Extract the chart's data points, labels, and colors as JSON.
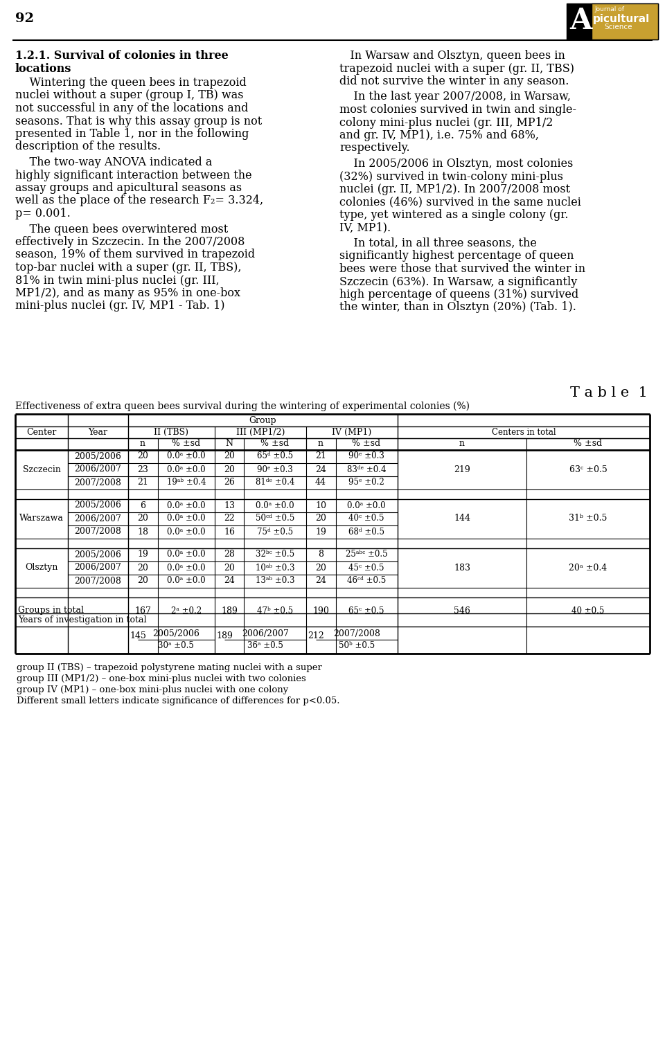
{
  "page_number": "92",
  "left_heading": "1.2.1. Survival of colonies in three\nlocations",
  "left_para1": "    Wintering the queen bees in trapezoid\nnuclei without a super (group I, TB) was\nnot successful in any of the locations and\nseasons. That is why this assay group is not\npresented in Table 1, nor in the following\ndescription of the results.",
  "left_para2": "    The two-way ANOVA indicated a\nhighly significant interaction between the\nassay groups and apicultural seasons as\nwell as the place of the research F₂= 3.324,\np= 0.001.",
  "left_para3": "    The queen bees overwintered most\neffectively in Szczecin. In the 2007/2008\nseason, 19% of them survived in trapezoid\ntop-bar nuclei with a super (gr. II, TBS),\n81% in twin mini-plus nuclei (gr. III,\nMP1/2), and as many as 95% in one-box\nmini-plus nuclei (gr. IV, MP1 - Tab. 1)",
  "right_para1": "   In Warsaw and Olsztyn, queen bees in\ntrapezoid nuclei with a super (gr. II, TBS)\ndid not survive the winter in any season.",
  "right_para2": "    In the last year 2007/2008, in Warsaw,\nmost colonies survived in twin and single-\ncolony mini-plus nuclei (gr. III, MP1/2\nand gr. IV, MP1), i.e. 75% and 68%,\nrespectively.",
  "right_para3": "    In 2005/2006 in Olsztyn, most colonies\n(32%) survived in twin-colony mini-plus\nnuclei (gr. II, MP1/2). In 2007/2008 most\ncolonies (46%) survived in the same nuclei\ntype, yet wintered as a single colony (gr.\nIV, MP1).",
  "right_para4": "    In total, in all three seasons, the\nsignificantly highest percentage of queen\nbees were those that survived the winter in\nSzczecin (63%). In Warsaw, a significantly\nhigh percentage of queens (31%) survived\nthe winter, than in Olsztyn (20%) (Tab. 1).",
  "table_title": "T a b l e  1",
  "table_subtitle": "Effectiveness of extra queen bees survival during the wintering of experimental colonies (%)",
  "footnotes": [
    "group II (TBS) – trapezoid polystyrene mating nuclei with a super",
    "group III (MP1/2) – one-box mini-plus nuclei with two colonies",
    "group IV (MP1) – one-box mini-plus nuclei with one colony",
    "Different small letters indicate significance of differences for p<0.05."
  ],
  "szc_data": [
    [
      "2005/2006",
      "20",
      "0.0ᵃ ±0.0",
      "20",
      "65ᵈ ±0.5",
      "21",
      "90ᵉ ±0.3"
    ],
    [
      "2006/2007",
      "23",
      "0.0ᵃ ±0.0",
      "20",
      "90ᵉ ±0.3",
      "24",
      "83ᵈᵉ ±0.4"
    ],
    [
      "2007/2008",
      "21",
      "19ᵃᵇ ±0.4",
      "26",
      "81ᵈᵉ ±0.4",
      "44",
      "95ᵉ ±0.2"
    ]
  ],
  "szc_total": [
    "219",
    "63ᶜ ±0.5"
  ],
  "war_data": [
    [
      "2005/2006",
      "6",
      "0.0ᵃ ±0.0",
      "13",
      "0.0ᵃ ±0.0",
      "10",
      "0.0ᵃ ±0.0"
    ],
    [
      "2006/2007",
      "20",
      "0.0ᵃ ±0.0",
      "22",
      "50ᶜᵈ ±0.5",
      "20",
      "40ᶜ ±0.5"
    ],
    [
      "2007/2008",
      "18",
      "0.0ᵃ ±0.0",
      "16",
      "75ᵈ ±0.5",
      "19",
      "68ᵈ ±0.5"
    ]
  ],
  "war_total": [
    "144",
    "31ᵇ ±0.5"
  ],
  "ols_data": [
    [
      "2005/2006",
      "19",
      "0.0ᵃ ±0.0",
      "28",
      "32ᵇᶜ ±0.5",
      "8",
      "25ᵃᵇᶜ ±0.5"
    ],
    [
      "2006/2007",
      "20",
      "0.0ᵃ ±0.0",
      "20",
      "10ᵃᵇ ±0.3",
      "20",
      "45ᶜ ±0.5"
    ],
    [
      "2007/2008",
      "20",
      "0.0ᵃ ±0.0",
      "24",
      "13ᵃᵇ ±0.3",
      "24",
      "46ᶜᵈ ±0.5"
    ]
  ],
  "ols_total": [
    "183",
    "20ᵃ ±0.4"
  ],
  "groups_total": [
    "167",
    "2ᵃ ±0.2",
    "189",
    "47ᵇ ±0.5",
    "190",
    "65ᶜ ±0.5",
    "546",
    "40 ±0.5"
  ],
  "years_total": [
    [
      "145",
      "2005/2006",
      "30ᵃ ±0.5"
    ],
    [
      "189",
      "2006/2007",
      "36ᵃ ±0.5"
    ],
    [
      "212",
      "2007/2008",
      "50ᵇ ±0.5"
    ]
  ]
}
